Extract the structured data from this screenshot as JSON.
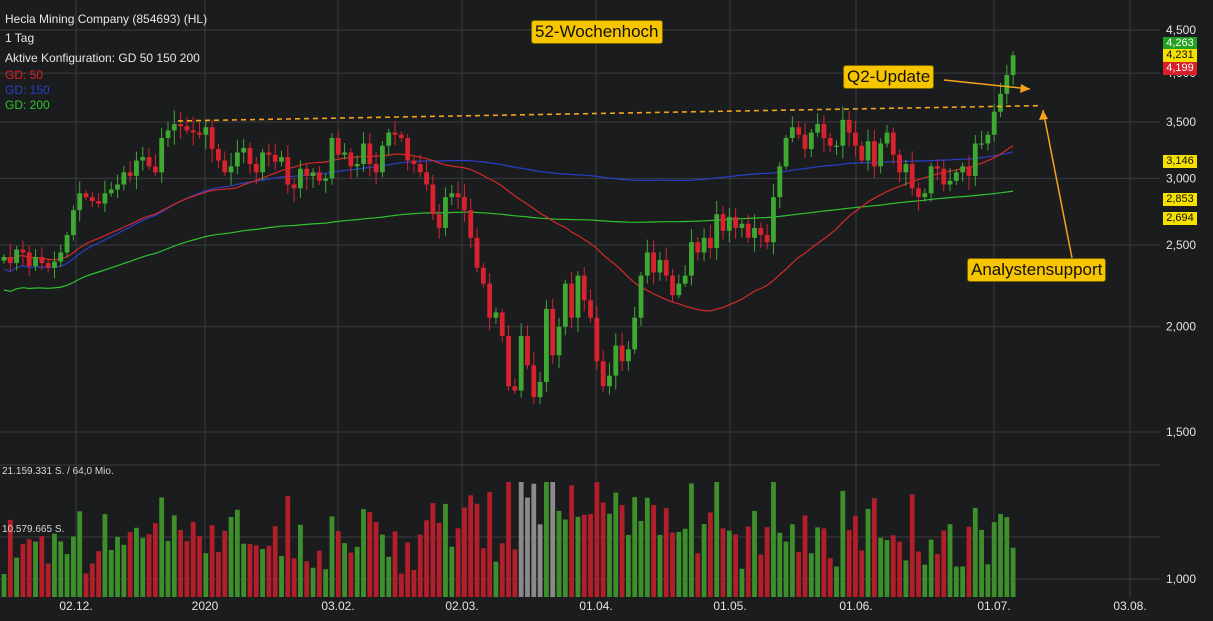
{
  "header": {
    "title": "Hecla Mining Company (854693) (HL)",
    "interval": "1 Tag",
    "config": "Aktive Konfiguration: GD 50 150 200",
    "legend": [
      {
        "label": "GD: 50",
        "color": "#e02020"
      },
      {
        "label": "GD: 150",
        "color": "#2840c8"
      },
      {
        "label": "GD: 200",
        "color": "#2fc22f"
      }
    ]
  },
  "annotations": {
    "high_label": "52-Wochenhoch",
    "update_label": "Q2-Update",
    "support_label": "Analystensupport"
  },
  "price_tags": [
    {
      "text": "4,263",
      "bg": "#22a022",
      "fg": "#ffffff"
    },
    {
      "text": "4,231",
      "bg": "#f6e000",
      "fg": "#111111"
    },
    {
      "text": "4,199",
      "bg": "#d81f2a",
      "fg": "#ffffff"
    },
    {
      "text": "3,146",
      "bg": "#f6e000",
      "fg": "#111111"
    },
    {
      "text": "2,853",
      "bg": "#f6e000",
      "fg": "#111111"
    },
    {
      "text": "2,694",
      "bg": "#f6e000",
      "fg": "#111111"
    }
  ],
  "volume_labels": {
    "top": "21.159.331 S. / 64,0 Mio.",
    "mid": "10.579.665 S."
  },
  "colors": {
    "up": "#3fa833",
    "down": "#d8222e",
    "grid": "#3a3b3e",
    "axis_text": "#e4e4e4",
    "dashed": "#f5a21c"
  },
  "chart_data": {
    "type": "candlestick",
    "y_scale": "log",
    "y_ticks": [
      "4,500",
      "4,000",
      "3,500",
      "3,000",
      "2,500",
      "2,000",
      "1,500",
      "1,000"
    ],
    "x_ticks": [
      "02.12.",
      "2020",
      "03.02.",
      "02.03.",
      "01.04.",
      "01.05.",
      "01.06.",
      "01.07.",
      "03.08."
    ],
    "close": [
      2.42,
      2.38,
      2.47,
      2.45,
      2.36,
      2.42,
      2.38,
      2.35,
      2.39,
      2.45,
      2.57,
      2.75,
      2.88,
      2.85,
      2.82,
      2.8,
      2.88,
      2.91,
      2.95,
      3.05,
      3.02,
      3.15,
      3.18,
      3.1,
      3.05,
      3.35,
      3.42,
      3.48,
      3.46,
      3.42,
      3.4,
      3.38,
      3.45,
      3.25,
      3.15,
      3.05,
      3.1,
      3.22,
      3.26,
      3.12,
      3.05,
      3.22,
      3.2,
      3.14,
      3.18,
      2.95,
      2.92,
      3.08,
      3.02,
      3.05,
      2.98,
      3.0,
      3.35,
      3.2,
      3.22,
      3.1,
      3.12,
      3.3,
      3.12,
      3.05,
      3.28,
      3.4,
      3.38,
      3.35,
      3.15,
      3.12,
      3.05,
      2.95,
      2.72,
      2.62,
      2.85,
      2.88,
      2.85,
      2.75,
      2.55,
      2.35,
      2.25,
      2.05,
      2.08,
      1.95,
      1.7,
      1.68,
      1.95,
      1.8,
      1.65,
      1.72,
      2.1,
      1.85,
      2.0,
      2.25,
      2.05,
      2.3,
      2.15,
      2.05,
      1.82,
      1.7,
      1.75,
      1.9,
      1.82,
      1.88,
      2.05,
      2.3,
      2.45,
      2.32,
      2.4,
      2.3,
      2.18,
      2.25,
      2.3,
      2.52,
      2.45,
      2.55,
      2.48,
      2.72,
      2.6,
      2.7,
      2.62,
      2.65,
      2.55,
      2.62,
      2.57,
      2.52,
      2.85,
      3.1,
      3.35,
      3.45,
      3.38,
      3.25,
      3.4,
      3.48,
      3.35,
      3.28,
      3.28,
      3.52,
      3.4,
      3.28,
      3.15,
      3.32,
      3.1,
      3.3,
      3.4,
      3.2,
      3.05,
      3.12,
      2.92,
      2.85,
      2.88,
      3.1,
      3.08,
      2.95,
      2.98,
      3.05,
      3.1,
      3.02,
      3.3,
      3.3,
      3.38,
      3.6,
      3.78,
      3.98,
      4.2
    ]
  }
}
